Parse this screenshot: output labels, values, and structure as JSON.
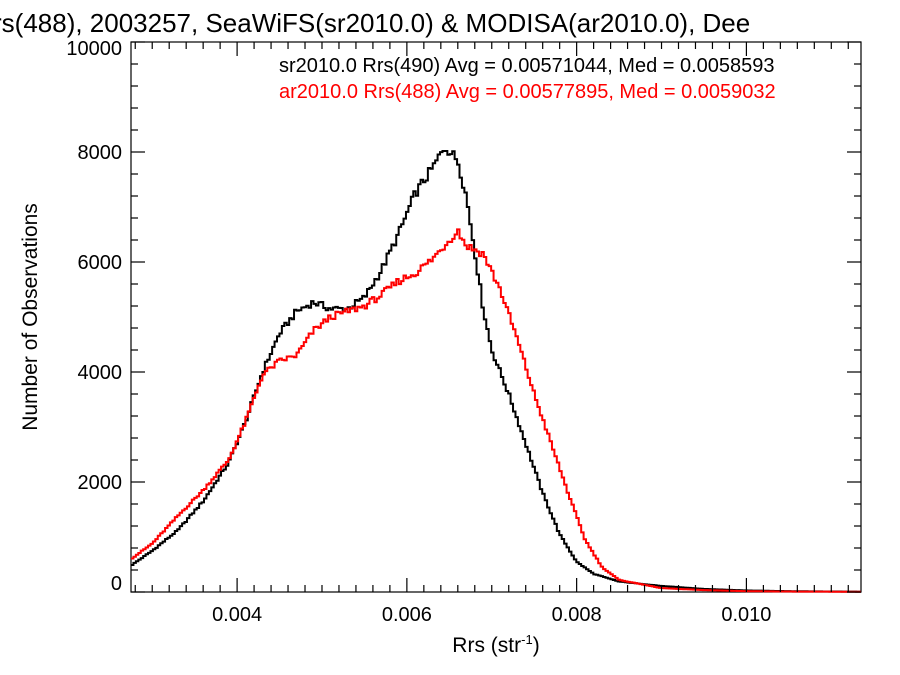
{
  "chart_data": {
    "type": "line",
    "title": "rs(488), 2003257, SeaWiFS(sr2010.0) & MODISA(ar2010.0), Dee",
    "xlabel_main": "Rrs (str",
    "xlabel_sup": "-1",
    "xlabel_tail": ")",
    "ylabel": "Number of Observations",
    "xlim": [
      0.00275,
      0.01135
    ],
    "ylim": [
      0,
      10000
    ],
    "xticks": [
      {
        "value": 0.004,
        "label": "0.004"
      },
      {
        "value": 0.006,
        "label": "0.006"
      },
      {
        "value": 0.008,
        "label": "0.008"
      },
      {
        "value": 0.01,
        "label": "0.010"
      }
    ],
    "yticks": [
      {
        "value": 0,
        "label": "0"
      },
      {
        "value": 2000,
        "label": "2000"
      },
      {
        "value": 4000,
        "label": "4000"
      },
      {
        "value": 6000,
        "label": "6000"
      },
      {
        "value": 8000,
        "label": "8000"
      },
      {
        "value": 10000,
        "label": "10000"
      }
    ],
    "legend": [
      {
        "text": "sr2010.0 Rrs(490) Avg = 0.00571044, Med = 0.0058593",
        "color": "#000000"
      },
      {
        "text": "ar2010.0 Rrs(488) Avg = 0.00577895, Med = 0.0059032",
        "color": "#ff0000"
      }
    ],
    "legend_placement": "top-right",
    "grid": false,
    "series": [
      {
        "color": "#000000",
        "points": [
          [
            0.00275,
            480
          ],
          [
            0.003,
            750
          ],
          [
            0.0033,
            1120
          ],
          [
            0.0036,
            1650
          ],
          [
            0.0039,
            2350
          ],
          [
            0.0041,
            3100
          ],
          [
            0.0043,
            4000
          ],
          [
            0.0045,
            4700
          ],
          [
            0.0047,
            5100
          ],
          [
            0.0049,
            5270
          ],
          [
            0.0051,
            5150
          ],
          [
            0.0053,
            5150
          ],
          [
            0.0055,
            5350
          ],
          [
            0.0057,
            5850
          ],
          [
            0.0059,
            6500
          ],
          [
            0.0061,
            7250
          ],
          [
            0.0063,
            7700
          ],
          [
            0.00645,
            8100
          ],
          [
            0.0066,
            7850
          ],
          [
            0.0067,
            7200
          ],
          [
            0.0068,
            6200
          ],
          [
            0.0069,
            5150
          ],
          [
            0.007,
            4400
          ],
          [
            0.0072,
            3600
          ],
          [
            0.0074,
            2700
          ],
          [
            0.0076,
            1800
          ],
          [
            0.0078,
            1050
          ],
          [
            0.008,
            550
          ],
          [
            0.0082,
            330
          ],
          [
            0.0085,
            190
          ],
          [
            0.009,
            110
          ],
          [
            0.0095,
            55
          ],
          [
            0.01,
            28
          ],
          [
            0.0105,
            15
          ],
          [
            0.01135,
            5
          ]
        ]
      },
      {
        "color": "#ff0000",
        "points": [
          [
            0.00275,
            600
          ],
          [
            0.003,
            880
          ],
          [
            0.0033,
            1380
          ],
          [
            0.0036,
            1850
          ],
          [
            0.0039,
            2400
          ],
          [
            0.0041,
            3100
          ],
          [
            0.0043,
            3950
          ],
          [
            0.0045,
            4200
          ],
          [
            0.0047,
            4300
          ],
          [
            0.0049,
            4750
          ],
          [
            0.0051,
            5000
          ],
          [
            0.0053,
            5100
          ],
          [
            0.0055,
            5200
          ],
          [
            0.0057,
            5400
          ],
          [
            0.0059,
            5650
          ],
          [
            0.0061,
            5800
          ],
          [
            0.0063,
            6050
          ],
          [
            0.0065,
            6400
          ],
          [
            0.0066,
            6580
          ],
          [
            0.0067,
            6300
          ],
          [
            0.0069,
            6150
          ],
          [
            0.0071,
            5500
          ],
          [
            0.0073,
            4600
          ],
          [
            0.0075,
            3600
          ],
          [
            0.0077,
            2700
          ],
          [
            0.0079,
            1800
          ],
          [
            0.0081,
            950
          ],
          [
            0.0083,
            450
          ],
          [
            0.0085,
            220
          ],
          [
            0.009,
            70
          ],
          [
            0.0095,
            35
          ],
          [
            0.01,
            15
          ],
          [
            0.0105,
            8
          ],
          [
            0.01135,
            4
          ]
        ]
      }
    ]
  }
}
